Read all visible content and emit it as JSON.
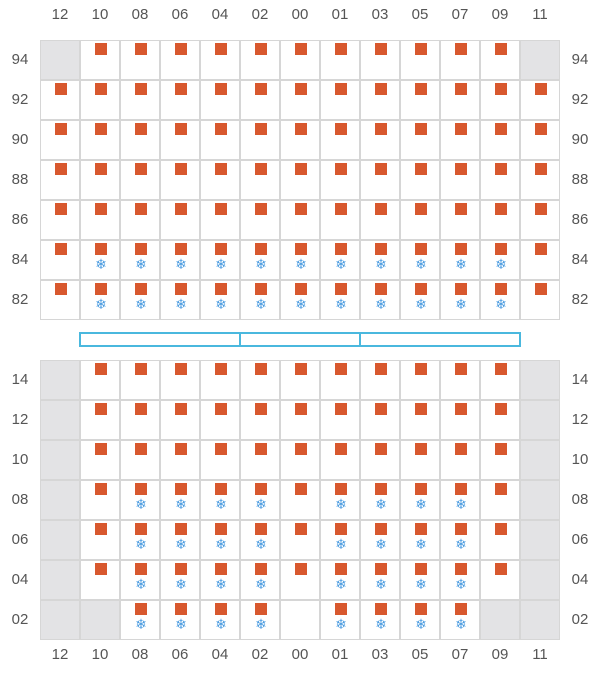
{
  "columns": [
    "12",
    "10",
    "08",
    "06",
    "04",
    "02",
    "00",
    "01",
    "03",
    "05",
    "07",
    "09",
    "11"
  ],
  "upper": {
    "rows": [
      "94",
      "92",
      "90",
      "88",
      "86",
      "84",
      "82"
    ],
    "empty_cells": [
      [
        "94",
        "12"
      ],
      [
        "94",
        "11"
      ]
    ],
    "reefer_cells": {
      "84": [
        "10",
        "08",
        "06",
        "04",
        "02",
        "00",
        "01",
        "03",
        "05",
        "07",
        "09"
      ],
      "82": [
        "10",
        "08",
        "06",
        "04",
        "02",
        "00",
        "01",
        "03",
        "05",
        "07",
        "09"
      ]
    }
  },
  "lower": {
    "rows": [
      "14",
      "12",
      "10",
      "08",
      "06",
      "04",
      "02"
    ],
    "empty_cells": [
      [
        "14",
        "12"
      ],
      [
        "14",
        "11"
      ],
      [
        "12",
        "12"
      ],
      [
        "12",
        "11"
      ],
      [
        "10",
        "12"
      ],
      [
        "10",
        "11"
      ],
      [
        "08",
        "12"
      ],
      [
        "08",
        "11"
      ],
      [
        "06",
        "12"
      ],
      [
        "06",
        "11"
      ],
      [
        "04",
        "12"
      ],
      [
        "04",
        "11"
      ],
      [
        "02",
        "12"
      ],
      [
        "02",
        "10"
      ],
      [
        "02",
        "09"
      ],
      [
        "02",
        "11"
      ]
    ],
    "no_container_cells": [
      [
        "02",
        "00"
      ]
    ],
    "reefer_cells": {
      "08": [
        "08",
        "06",
        "04",
        "02",
        "01",
        "03",
        "05",
        "07"
      ],
      "06": [
        "08",
        "06",
        "04",
        "02",
        "01",
        "03",
        "05",
        "07"
      ],
      "04": [
        "08",
        "06",
        "04",
        "02",
        "01",
        "03",
        "05",
        "07"
      ],
      "02": [
        "08",
        "06",
        "04",
        "02",
        "01",
        "03",
        "05",
        "07"
      ]
    }
  },
  "icons": {
    "container": "container-square-icon",
    "reefer": "snowflake-icon"
  },
  "colors": {
    "container": "#d8582e",
    "reefer": "#4a9be0",
    "empty": "#e3e3e5",
    "grid": "#d6d6d6",
    "hatch": "#4ab8de",
    "label": "#555555"
  },
  "snowflake_glyph": "❄"
}
